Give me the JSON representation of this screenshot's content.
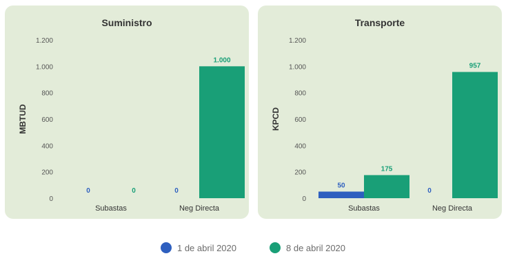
{
  "colors": {
    "series_1": "#2e5fbf",
    "series_2": "#199f77",
    "panel_bg": "#e3ecd9"
  },
  "legend": [
    {
      "label": "1 de abril 2020",
      "color": "#2e5fbf"
    },
    {
      "label": "8 de abril 2020",
      "color": "#199f77"
    }
  ],
  "chart_data": [
    {
      "type": "bar",
      "title": "Suministro",
      "ylabel": "MBTUD",
      "xlabel": "",
      "categories": [
        "Subastas",
        "Neg Directa"
      ],
      "ylim": [
        0,
        1200
      ],
      "yticks": [
        0,
        200,
        400,
        600,
        800,
        1000,
        1200
      ],
      "ytick_labels": [
        "0",
        "200",
        "400",
        "600",
        "800",
        "1.000",
        "1.200"
      ],
      "grid": false,
      "legend": "bottom-center",
      "series": [
        {
          "name": "1 de abril 2020",
          "values": [
            0,
            0
          ],
          "labels": [
            "0",
            "0"
          ]
        },
        {
          "name": "8 de abril 2020",
          "values": [
            0,
            1000
          ],
          "labels": [
            "0",
            "1.000"
          ]
        }
      ]
    },
    {
      "type": "bar",
      "title": "Transporte",
      "ylabel": "KPCD",
      "xlabel": "",
      "categories": [
        "Subastas",
        "Neg Directa"
      ],
      "ylim": [
        0,
        1200
      ],
      "yticks": [
        0,
        200,
        400,
        600,
        800,
        1000,
        1200
      ],
      "ytick_labels": [
        "0",
        "200",
        "400",
        "600",
        "800",
        "1.000",
        "1.200"
      ],
      "grid": false,
      "legend": "bottom-center",
      "series": [
        {
          "name": "1 de abril 2020",
          "values": [
            50,
            0
          ],
          "labels": [
            "50",
            "0"
          ]
        },
        {
          "name": "8 de abril 2020",
          "values": [
            175,
            957
          ],
          "labels": [
            "175",
            "957"
          ]
        }
      ]
    }
  ]
}
